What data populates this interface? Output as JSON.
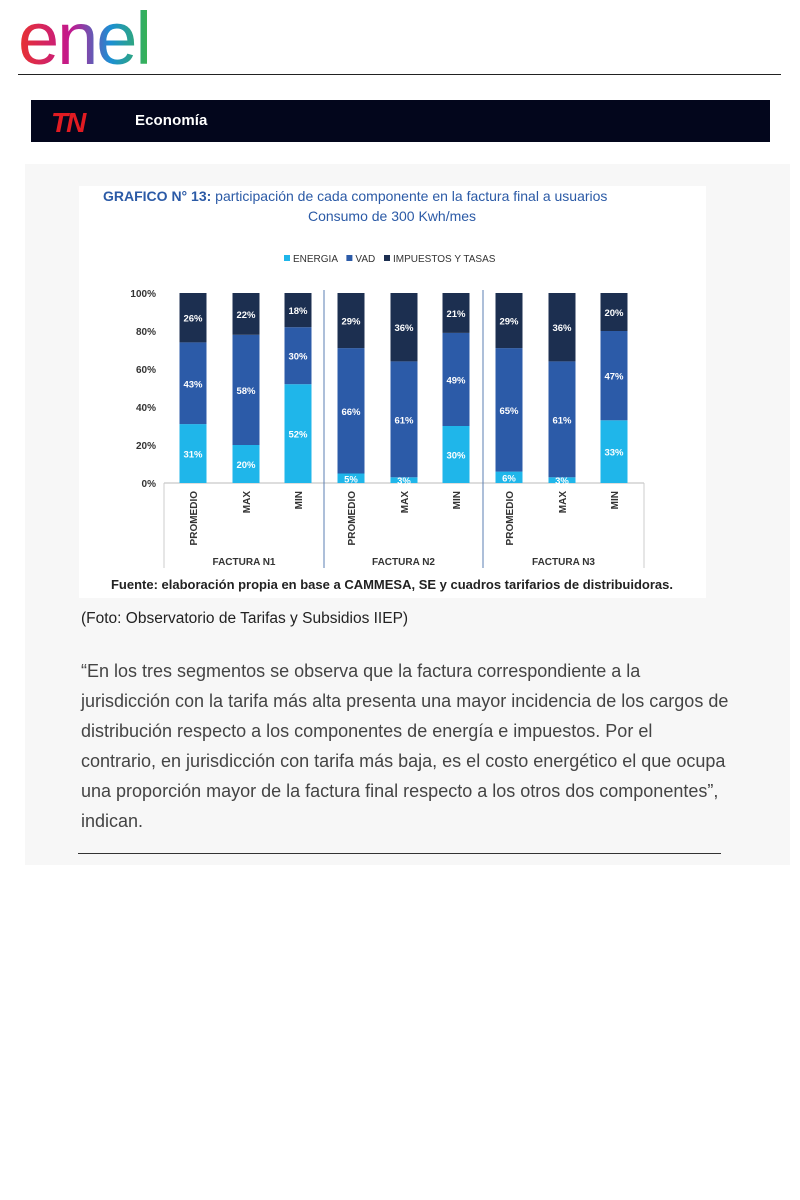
{
  "brand": {
    "logo_text": "enel"
  },
  "news_bar": {
    "logo_text": "TN",
    "section": "Economía",
    "bg_color": "#03061c"
  },
  "colors": {
    "energia": "#1fb6ea",
    "vad": "#2c5ba8",
    "impuestos": "#1c2f50",
    "title": "#2b5aa6"
  },
  "chart_data": {
    "type": "bar",
    "stacked": true,
    "title_prefix": "GRAFICO N° 13:",
    "title_rest": " participación de cada componente en la factura final a usuarios",
    "subtitle": "Consumo de 300 Kwh/mes",
    "legend": [
      "ENERGIA",
      "VAD",
      "IMPUESTOS Y TASAS"
    ],
    "legend_position": "top-center",
    "y_ticks": [
      "0%",
      "20%",
      "40%",
      "60%",
      "80%",
      "100%"
    ],
    "ylim": [
      0,
      100
    ],
    "groups": [
      "FACTURA N1",
      "FACTURA N2",
      "FACTURA N3"
    ],
    "categories": [
      "PROMEDIO",
      "MAX",
      "MIN",
      "PROMEDIO",
      "MAX",
      "MIN",
      "PROMEDIO",
      "MAX",
      "MIN"
    ],
    "series": [
      {
        "name": "ENERGIA",
        "values": [
          31,
          20,
          52,
          5,
          3,
          30,
          6,
          3,
          33
        ]
      },
      {
        "name": "VAD",
        "values": [
          43,
          58,
          30,
          66,
          61,
          49,
          65,
          61,
          47
        ]
      },
      {
        "name": "IMPUESTOS Y TASAS",
        "values": [
          26,
          22,
          18,
          29,
          36,
          21,
          29,
          36,
          20
        ]
      }
    ],
    "source": "Fuente: elaboración propia en base a CAMMESA, SE y cuadros tarifarios de distribuidoras."
  },
  "caption": "(Foto: Observatorio de Tarifas y Subsidios IIEP)",
  "quote": "“En los tres segmentos se observa que la factura correspondiente a la jurisdicción con la tarifa más alta presenta una mayor incidencia de los cargos de distribución respecto a los componentes de energía e impuestos. Por el contrario, en jurisdicción con tarifa más baja, es el costo energético el que ocupa una proporción mayor de la factura final respecto a los otros dos componentes”, indican."
}
